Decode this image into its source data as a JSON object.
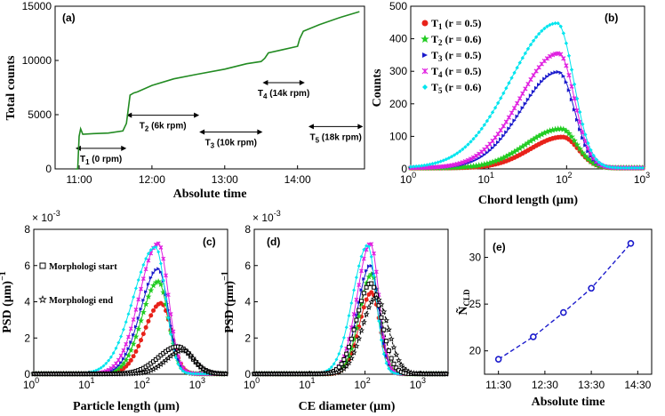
{
  "chart_data": [
    {
      "id": "a",
      "panel_label": "(a)",
      "type": "line",
      "xlabel": "Absolute time",
      "ylabel": "Total counts",
      "xticks": [
        "11:00",
        "12:00",
        "13:00",
        "14:00"
      ],
      "xtick_values": [
        11.0,
        12.0,
        13.0,
        14.0
      ],
      "xlim": [
        10.67,
        14.92
      ],
      "yticks": [
        "0",
        "5000",
        "10000",
        "15000"
      ],
      "ytick_values": [
        0,
        5000,
        10000,
        15000
      ],
      "ylim": [
        0,
        15000
      ],
      "series": [
        {
          "name": "Total counts",
          "color": "#228B22",
          "x": [
            10.95,
            10.98,
            11.0,
            11.02,
            11.05,
            11.2,
            11.4,
            11.6,
            11.65,
            11.7,
            11.75,
            11.8,
            12.0,
            12.3,
            12.6,
            13.0,
            13.3,
            13.5,
            13.55,
            13.6,
            13.8,
            14.0,
            14.03,
            14.08,
            14.3,
            14.6,
            14.85
          ],
          "y": [
            0,
            0,
            3000,
            3700,
            3200,
            3250,
            3300,
            3500,
            4200,
            6800,
            7000,
            7100,
            7700,
            8300,
            8700,
            9200,
            9700,
            9900,
            10200,
            10700,
            11000,
            11300,
            12000,
            12700,
            13300,
            14000,
            14500
          ]
        }
      ],
      "annotations": [
        {
          "t_main": "T",
          "t_sub": "1",
          "label": " (0 rpm)",
          "x0": 10.95,
          "x1": 11.65,
          "y": 1900
        },
        {
          "t_main": "T",
          "t_sub": "2",
          "label": " (6k rpm)",
          "x0": 11.65,
          "x1": 12.65,
          "y": 4950
        },
        {
          "t_main": "T",
          "t_sub": "3",
          "label": " (10k rpm)",
          "x0": 12.65,
          "x1": 13.52,
          "y": 3400
        },
        {
          "t_main": "T",
          "t_sub": "4",
          "label": " (14k rpm)",
          "x0": 13.52,
          "x1": 14.1,
          "y": 7950
        },
        {
          "t_main": "T",
          "t_sub": "5",
          "label": " (18k rpm)",
          "x0": 14.15,
          "x1": 14.9,
          "y": 3900
        }
      ]
    },
    {
      "id": "b",
      "panel_label": "(b)",
      "type": "line",
      "xlabel": "Chord length (μm)",
      "ylabel": "Counts",
      "xscale": "log",
      "xticks": [
        "10",
        "10",
        "10",
        "10"
      ],
      "xtick_exps": [
        "0",
        "1",
        "2",
        "3"
      ],
      "xtick_values": [
        0,
        1,
        2,
        3
      ],
      "xlim": [
        0,
        3
      ],
      "yticks": [
        "0",
        "100",
        "200",
        "300",
        "400",
        "500"
      ],
      "ytick_values": [
        0,
        100,
        200,
        300,
        400,
        500
      ],
      "ylim": [
        0,
        500
      ],
      "series": [
        {
          "name": "T",
          "sub": "1",
          "r_label": " (r = 0.5)",
          "color": "#e8221a",
          "marker": "circle",
          "peak_exp": 1.95,
          "peak": 95,
          "sl": 0.42,
          "sr": 0.2
        },
        {
          "name": "T",
          "sub": "2",
          "r_label": " (r = 0.6)",
          "color": "#22cc22",
          "marker": "star",
          "peak_exp": 1.93,
          "peak": 120,
          "sl": 0.45,
          "sr": 0.2
        },
        {
          "name": "T",
          "sub": "3",
          "r_label": " (r = 0.5)",
          "color": "#1a1acc",
          "marker": "triangle",
          "peak_exp": 1.9,
          "peak": 295,
          "sl": 0.48,
          "sr": 0.2
        },
        {
          "name": "T",
          "sub": "4",
          "r_label": " (r = 0.5)",
          "color": "#e020e0",
          "marker": "cross",
          "peak_exp": 1.9,
          "peak": 352,
          "sl": 0.5,
          "sr": 0.2
        },
        {
          "name": "T",
          "sub": "5",
          "r_label": " (r = 0.6)",
          "color": "#00e5ee",
          "marker": "diamond",
          "peak_exp": 1.88,
          "peak": 445,
          "sl": 0.6,
          "sr": 0.21
        }
      ]
    },
    {
      "id": "c",
      "panel_label": "(c)",
      "type": "line",
      "xlabel": "Particle length (μm)",
      "ylabel": "PSD (μm)",
      "ylabel_exp": "−1",
      "xscale": "log",
      "scale_note_base": "× 10",
      "scale_note_exp": "-3",
      "xticks": [
        "10",
        "10",
        "10",
        "10"
      ],
      "xtick_exps": [
        "0",
        "1",
        "2",
        "3"
      ],
      "xtick_values": [
        0,
        1,
        2,
        3
      ],
      "xlim": [
        0,
        3.5
      ],
      "yticks": [
        "0",
        "2",
        "4",
        "6",
        "8"
      ],
      "ytick_values": [
        0,
        2,
        4,
        6,
        8
      ],
      "ylim": [
        0,
        8
      ],
      "legend": [
        {
          "label": "Morphologi start",
          "marker": "square"
        },
        {
          "label": "Morphologi end",
          "marker": "pentagram"
        }
      ],
      "series": [
        {
          "name": "T1",
          "color": "#e8221a",
          "peak_exp": 2.3,
          "peak": 3.9,
          "sl": 0.3,
          "sr": 0.18
        },
        {
          "name": "T2",
          "color": "#22cc22",
          "peak_exp": 2.25,
          "peak": 5.1,
          "sl": 0.3,
          "sr": 0.18
        },
        {
          "name": "T3",
          "color": "#1a1acc",
          "peak_exp": 2.25,
          "peak": 5.8,
          "sl": 0.32,
          "sr": 0.18
        },
        {
          "name": "T4",
          "color": "#e020e0",
          "peak_exp": 2.25,
          "peak": 7.2,
          "sl": 0.34,
          "sr": 0.18
        },
        {
          "name": "T5",
          "color": "#00e5ee",
          "peak_exp": 2.2,
          "peak": 7.0,
          "sl": 0.4,
          "sr": 0.18
        },
        {
          "name": "Morphologi start",
          "color": "#000000",
          "dashed": true,
          "peak_exp": 2.6,
          "peak": 1.5,
          "sl": 0.35,
          "sr": 0.25
        },
        {
          "name": "Morphologi end",
          "color": "#000000",
          "dashed": true,
          "peak_exp": 2.7,
          "peak": 1.3,
          "sl": 0.3,
          "sr": 0.2
        }
      ]
    },
    {
      "id": "d",
      "panel_label": "(d)",
      "type": "line",
      "xlabel": "CE diameter (μm)",
      "ylabel": "PSD (μm)",
      "ylabel_exp": "−1",
      "xscale": "log",
      "scale_note_base": "× 10",
      "scale_note_exp": "-3",
      "xticks": [
        "10",
        "10",
        "10",
        "10"
      ],
      "xtick_exps": [
        "0",
        "1",
        "2",
        "3"
      ],
      "xtick_values": [
        0,
        1,
        2,
        3
      ],
      "xlim": [
        0,
        3.5
      ],
      "yticks": [
        "0",
        "2",
        "4",
        "6",
        "8"
      ],
      "ytick_values": [
        0,
        2,
        4,
        6,
        8
      ],
      "ylim": [
        0,
        8
      ],
      "series": [
        {
          "name": "T1",
          "color": "#e8221a",
          "peak_exp": 2.12,
          "peak": 4.5,
          "sl": 0.22,
          "sr": 0.15
        },
        {
          "name": "T2",
          "color": "#22cc22",
          "peak_exp": 2.12,
          "peak": 5.5,
          "sl": 0.22,
          "sr": 0.15
        },
        {
          "name": "T3",
          "color": "#1a1acc",
          "peak_exp": 2.1,
          "peak": 6.0,
          "sl": 0.23,
          "sr": 0.15
        },
        {
          "name": "T4",
          "color": "#e020e0",
          "peak_exp": 2.1,
          "peak": 7.2,
          "sl": 0.24,
          "sr": 0.15
        },
        {
          "name": "T5",
          "color": "#00e5ee",
          "peak_exp": 2.05,
          "peak": 7.1,
          "sl": 0.27,
          "sr": 0.15
        },
        {
          "name": "Morphologi start",
          "color": "#000000",
          "dashed": true,
          "peak_exp": 2.1,
          "peak": 5.0,
          "sl": 0.25,
          "sr": 0.2
        },
        {
          "name": "Morphologi end",
          "color": "#000000",
          "dashed": true,
          "peak_exp": 2.2,
          "peak": 4.2,
          "sl": 0.25,
          "sr": 0.22
        }
      ]
    },
    {
      "id": "e",
      "panel_label": "(e)",
      "type": "scatter",
      "xlabel": "Absolute time",
      "ylabel_main": "Ñ",
      "ylabel_sub": "CLD",
      "xticks": [
        "11:30",
        "12:30",
        "13:30",
        "14:30"
      ],
      "xtick_values": [
        11.5,
        12.5,
        13.5,
        14.5
      ],
      "xlim": [
        11.2,
        14.8
      ],
      "yticks": [
        "20",
        "25",
        "30"
      ],
      "ytick_values": [
        20,
        25,
        30
      ],
      "ylim": [
        17.5,
        33
      ],
      "series": [
        {
          "name": "Ñ CLD",
          "color": "#1a1acc",
          "dashed": true,
          "marker": "circle",
          "x": [
            11.5,
            12.25,
            12.9,
            13.5,
            14.35
          ],
          "y": [
            19.1,
            21.5,
            24.1,
            26.7,
            31.5
          ]
        }
      ]
    }
  ]
}
